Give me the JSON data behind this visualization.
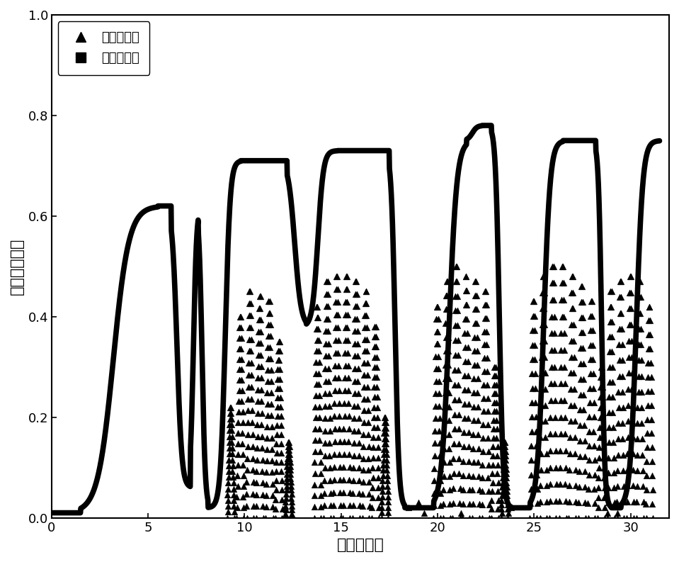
{
  "xlabel": "时间（天）",
  "ylabel": "电流（毫安）",
  "xlim": [
    0,
    32
  ],
  "ylim": [
    0.0,
    1.0
  ],
  "xticks": [
    0,
    5,
    10,
    15,
    20,
    25,
    30
  ],
  "yticks": [
    0.0,
    0.2,
    0.4,
    0.6,
    0.8,
    1.0
  ],
  "legend_triangle_label": "普通生物膜",
  "legend_square_label": "复合生物膜",
  "line_color": "#000000",
  "scatter_color": "#000000",
  "background_color": "#ffffff",
  "xlabel_fontsize": 16,
  "ylabel_fontsize": 16,
  "tick_fontsize": 13,
  "legend_fontsize": 13,
  "line_linewidth": 5.5,
  "scatter_size": 40
}
